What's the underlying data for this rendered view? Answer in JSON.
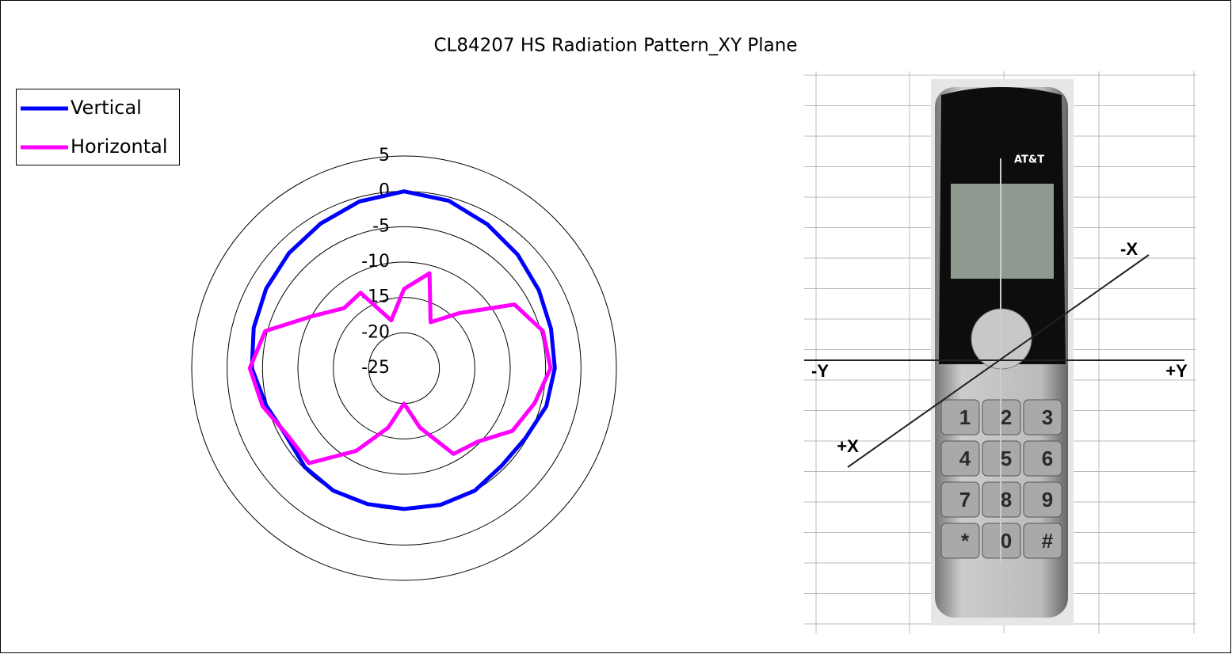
{
  "chart_data": {
    "type": "radar",
    "title": "CL84207 HS Radiation Pattern_XY Plane",
    "ylim": [
      -25,
      5
    ],
    "yticks": [
      5,
      0,
      -5,
      -10,
      -15,
      -20,
      -25
    ],
    "grid": true,
    "legend": "top-left",
    "series": [
      {
        "name": "Vertical",
        "color": "#0000ff",
        "values": [
          0,
          -0.5,
          -1.5,
          -2.3,
          -3,
          -3.5,
          -3.7,
          -4.2,
          -5.2,
          -5.5,
          -5,
          -5,
          -5.1,
          -5.1,
          -5,
          -5.2,
          -5.8,
          -4.8,
          -3.5,
          -3,
          -2.5,
          -2,
          -1.4,
          -0.6
        ]
      },
      {
        "name": "Horizontal",
        "color": "#ff00ff",
        "values": [
          -13.8,
          -11.1,
          -17.5,
          -14,
          -7,
          -4.7,
          -4.3,
          -5.9,
          -7.3,
          -10.3,
          -11,
          -16.3,
          -20,
          -16.3,
          -11.5,
          -6,
          -6,
          -4.3,
          -3.2,
          -4.7,
          -10.2,
          -13,
          -12.7,
          -18
        ]
      }
    ]
  },
  "image": {
    "axis_labels": [
      "-Y",
      "+Y",
      "+X",
      "-X"
    ],
    "phone_text": [
      "AT&T",
      "1",
      "2",
      "3",
      "4",
      "5",
      "6",
      "7",
      "8",
      "9",
      "*",
      "0",
      "#"
    ]
  }
}
